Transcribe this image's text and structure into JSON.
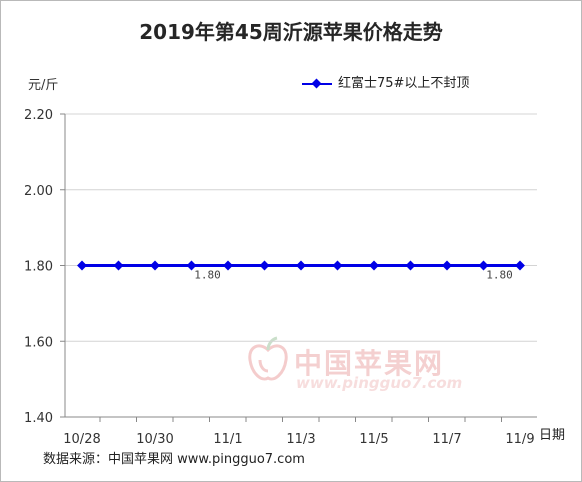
{
  "chart_data": {
    "type": "line",
    "title": "2019年第45周沂源苹果价格走势",
    "ylabel": "元/斤",
    "xlabel": "日期",
    "ylim": [
      1.4,
      2.2
    ],
    "yticks": [
      "2.20",
      "2.00",
      "1.80",
      "1.60",
      "1.40"
    ],
    "ytick_values": [
      2.2,
      2.0,
      1.8,
      1.6,
      1.4
    ],
    "x": [
      "10/28",
      "10/29",
      "10/30",
      "10/31",
      "11/1",
      "11/2",
      "11/3",
      "11/4",
      "11/5",
      "11/6",
      "11/7",
      "11/8",
      "11/9"
    ],
    "xtick_labels": [
      "10/28",
      "10/30",
      "11/1",
      "11/3",
      "11/5",
      "11/7",
      "11/9"
    ],
    "series": [
      {
        "name": "红富士75#以上不封顶",
        "values": [
          1.8,
          1.8,
          1.8,
          1.8,
          1.8,
          1.8,
          1.8,
          1.8,
          1.8,
          1.8,
          1.8,
          1.8,
          1.8
        ],
        "color": "#0000e6"
      }
    ],
    "data_labels": [
      {
        "index": 3,
        "text": "1.80"
      },
      {
        "index": 11,
        "text": "1.80"
      }
    ],
    "grid": "horizontal",
    "legend": "top-right"
  },
  "footer": "数据来源：中国苹果网 www.pingguo7.com",
  "watermark": {
    "cn": "中国苹果网",
    "en": "www.pingguo7.com"
  }
}
